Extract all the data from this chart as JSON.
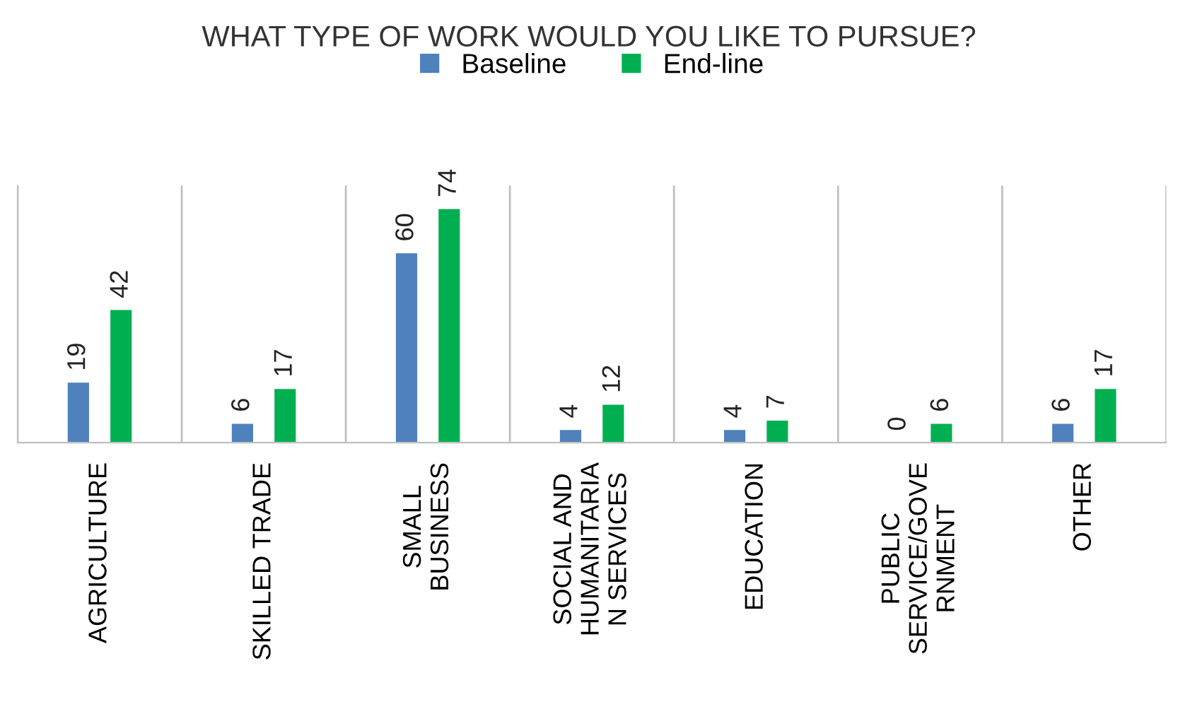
{
  "chart_data": {
    "type": "bar",
    "title": "WHAT TYPE OF WORK WOULD YOU LIKE TO PURSUE?",
    "categories": [
      "AGRICULTURE",
      "SKILLED TRADE",
      "SMALL\nBUSINESS",
      "SOCIAL AND\nHUMANITARIA\nN SERVICES",
      "EDUCATION",
      "PUBLIC\nSERVICE/GOVE\nRNMENT",
      "OTHER"
    ],
    "series": [
      {
        "name": "Baseline",
        "color": "#4f81bd",
        "values": [
          19,
          6,
          60,
          4,
          4,
          0,
          6
        ]
      },
      {
        "name": "End-line",
        "color": "#00b050",
        "values": [
          42,
          17,
          74,
          12,
          7,
          6,
          17
        ]
      }
    ],
    "data_labels": true,
    "grid": "x",
    "legend": "top",
    "tick_labels": "x"
  }
}
